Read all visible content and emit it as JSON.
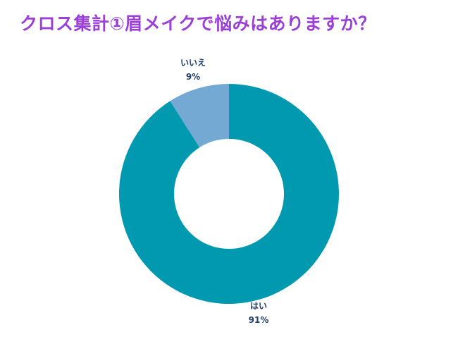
{
  "chart_data": {
    "type": "pie",
    "title": "クロス集計①眉メイクで悩みはありますか？",
    "donut": true,
    "categories": [
      "はい",
      "いいえ"
    ],
    "values": [
      91,
      9
    ],
    "labels": [
      "91%",
      "9%"
    ],
    "colors": [
      "#0099b0",
      "#73a9d3"
    ],
    "legend": "none"
  }
}
